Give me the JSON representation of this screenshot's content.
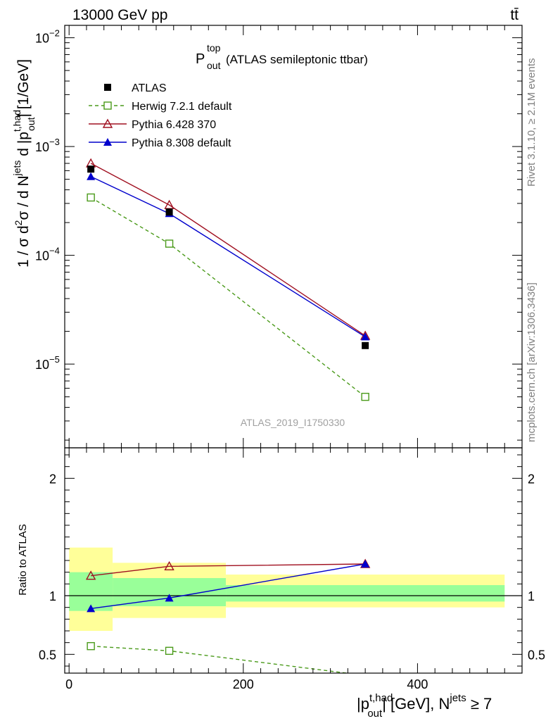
{
  "header": {
    "left": "13000 GeV pp",
    "right": "tt̄"
  },
  "side_texts": {
    "rivet": "Rivet 3.1.10, ≥ 2.1M events",
    "mcplots": "mcplots.cern.ch [arXiv:1306.3436]"
  },
  "watermark": "ATLAS_2019_I1750330",
  "colors": {
    "atlas": "#000000",
    "herwig": "#4a9a1a",
    "pythia6": "#a01020",
    "pythia8": "#0000cc",
    "band_inner": "#99ff99",
    "band_outer": "#ffff99"
  },
  "chart_data": [
    {
      "type": "scatter",
      "panel": "main",
      "title": "P_out^top (ATLAS semileptonic ttbar)",
      "title_main": "P",
      "title_sup": "top",
      "title_sub": "out",
      "title_rest": "(ATLAS semileptonic ttbar)",
      "ylabel": "1 / σ d²σ / d N^jets d |p_out^t,had| [1/GeV]",
      "yscale": "log",
      "ylim": [
        1.7e-06,
        0.013
      ],
      "xlim": [
        -5,
        520
      ],
      "y_ticks": [
        {
          "value": 0.01,
          "base": "10",
          "exp": "−2"
        },
        {
          "value": 0.001,
          "base": "10",
          "exp": "−3"
        },
        {
          "value": 0.0001,
          "base": "10",
          "exp": "−4"
        },
        {
          "value": 1e-05,
          "base": "10",
          "exp": "−5"
        }
      ],
      "legend_position": "top-left",
      "series": [
        {
          "name": "ATLAS",
          "marker": "filled-square",
          "x": [
            25,
            115,
            340
          ],
          "y": [
            0.00062,
            0.00025,
            1.48e-05
          ]
        },
        {
          "name": "Herwig 7.2.1 default",
          "marker": "open-square",
          "line": "dashed",
          "x": [
            25,
            115,
            340
          ],
          "y": [
            0.00034,
            0.000128,
            5e-06
          ]
        },
        {
          "name": "Pythia 6.428 370",
          "marker": "open-triangle",
          "line": "solid",
          "x": [
            25,
            115,
            340
          ],
          "y": [
            0.0007,
            0.00029,
            1.82e-05
          ]
        },
        {
          "name": "Pythia 8.308 default",
          "marker": "filled-triangle",
          "line": "solid",
          "x": [
            25,
            115,
            340
          ],
          "y": [
            0.00053,
            0.000242,
            1.78e-05
          ]
        }
      ]
    },
    {
      "type": "line",
      "panel": "ratio",
      "ylabel": "Ratio to ATLAS",
      "xlabel": "|p_out^t,had| [GeV], N^jets ≥ 7",
      "ylim": [
        0.34,
        2.26
      ],
      "xlim": [
        -5,
        520
      ],
      "x_ticks": [
        0,
        200,
        400
      ],
      "y_ticks": [
        0.5,
        1,
        2
      ],
      "reference": 1,
      "bands": [
        {
          "x0": 0,
          "x1": 50,
          "inner": [
            0.87,
            1.2
          ],
          "outer": [
            0.7,
            1.41
          ]
        },
        {
          "x0": 50,
          "x1": 180,
          "inner": [
            0.91,
            1.15
          ],
          "outer": [
            0.81,
            1.28
          ]
        },
        {
          "x0": 180,
          "x1": 500,
          "inner": [
            0.95,
            1.09
          ],
          "outer": [
            0.9,
            1.18
          ]
        }
      ],
      "series": [
        {
          "name": "Herwig 7.2.1 default",
          "x": [
            25,
            115,
            340
          ],
          "y": [
            0.57,
            0.53,
            0.32
          ]
        },
        {
          "name": "Pythia 6.428 370",
          "x": [
            25,
            115,
            340
          ],
          "y": [
            1.17,
            1.25,
            1.27
          ]
        },
        {
          "name": "Pythia 8.308 default",
          "x": [
            25,
            115,
            340
          ],
          "y": [
            0.89,
            0.98,
            1.27
          ]
        }
      ]
    }
  ]
}
